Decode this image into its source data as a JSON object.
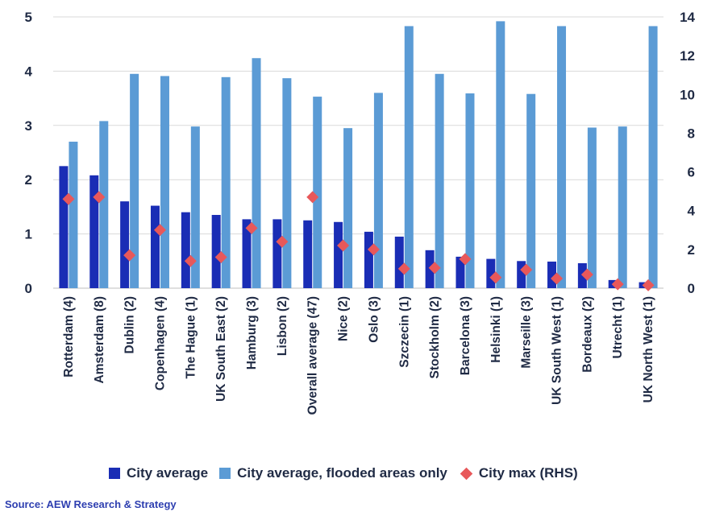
{
  "chart_data": {
    "type": "bar",
    "categories": [
      "Rotterdam (4)",
      "Amsterdam (8)",
      "Dublin (2)",
      "Copenhagen (4)",
      "The Hague (1)",
      "UK South East (2)",
      "Hamburg (3)",
      "Lisbon (2)",
      "Overall average (47)",
      "Nice (2)",
      "Oslo (3)",
      "Szczecin (1)",
      "Stockholm (2)",
      "Barcelona (3)",
      "Helsinki (1)",
      "Marseille (3)",
      "UK South West (1)",
      "Bordeaux (2)",
      "Utrecht (1)",
      "UK North West (1)"
    ],
    "series": [
      {
        "name": "City average",
        "axis": "left",
        "mark": "bar",
        "color": "#1a2db5",
        "values": [
          2.25,
          2.08,
          1.6,
          1.52,
          1.4,
          1.35,
          1.27,
          1.27,
          1.25,
          1.22,
          1.04,
          0.95,
          0.7,
          0.58,
          0.54,
          0.5,
          0.49,
          0.46,
          0.15,
          0.11
        ]
      },
      {
        "name": "City average, flooded areas only",
        "axis": "left",
        "mark": "bar",
        "color": "#5b9bd5",
        "values": [
          2.7,
          3.08,
          3.95,
          3.91,
          2.98,
          3.89,
          4.24,
          3.87,
          3.53,
          2.95,
          3.6,
          4.83,
          3.95,
          3.59,
          4.92,
          3.58,
          4.83,
          2.96,
          2.98,
          4.83
        ]
      },
      {
        "name": "City max (RHS)",
        "axis": "right",
        "mark": "diamond",
        "color": "#e8585a",
        "values": [
          4.6,
          4.7,
          1.7,
          3.0,
          1.4,
          1.6,
          3.1,
          2.4,
          4.7,
          2.2,
          2.0,
          1.0,
          1.05,
          1.5,
          0.55,
          0.95,
          0.5,
          0.7,
          0.2,
          0.15
        ]
      }
    ],
    "ylim": [
      0,
      5
    ],
    "y_ticks": [
      "0",
      "1",
      "2",
      "3",
      "4",
      "5"
    ],
    "y2lim": [
      0,
      14
    ],
    "y2_ticks": [
      "0",
      "2",
      "4",
      "6",
      "8",
      "10",
      "12",
      "14"
    ],
    "grid": "horizontal",
    "legend_position": "bottom",
    "title": "",
    "xlabel": "",
    "ylabel": ""
  },
  "legend": {
    "items": [
      {
        "label": "City average",
        "color": "#1a2db5"
      },
      {
        "label": "City average, flooded areas only",
        "color": "#5b9bd5"
      },
      {
        "label": "City max (RHS)",
        "color": "#e8585a"
      }
    ]
  },
  "source": "Source: AEW Research & Strategy"
}
